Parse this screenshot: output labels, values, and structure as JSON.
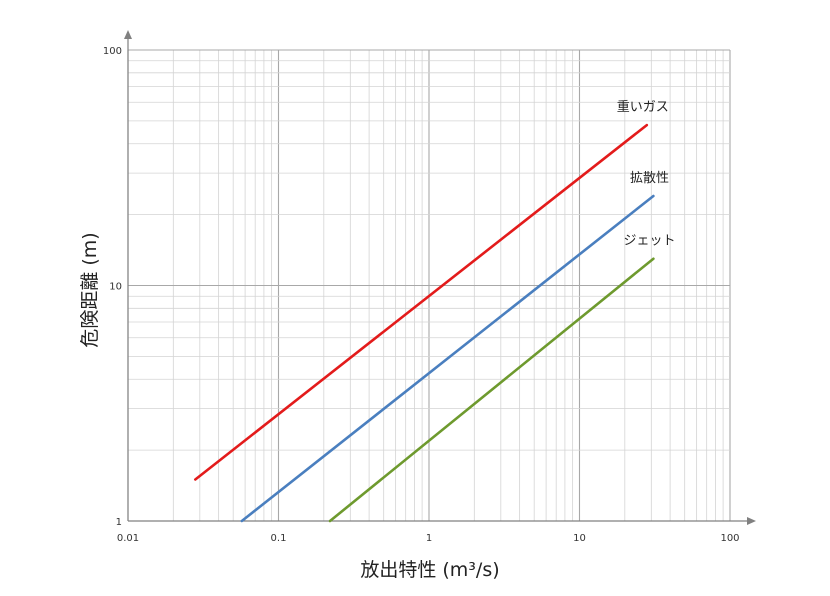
{
  "chart_data": {
    "type": "line",
    "xlabel": "放出特性 (m³/s)",
    "ylabel": "危険距離 (m)",
    "x_scale": "log",
    "y_scale": "log",
    "xlim": [
      0.01,
      100
    ],
    "ylim": [
      1,
      100
    ],
    "x_ticks": [
      "0.01",
      "0.1",
      "1",
      "10",
      "100"
    ],
    "y_ticks": [
      "1",
      "10",
      "100"
    ],
    "grid": true,
    "series": [
      {
        "name": "重いガス",
        "color": "#e31b1b",
        "x": [
          0.028,
          28
        ],
        "y": [
          1.5,
          48
        ]
      },
      {
        "name": "拡散性",
        "color": "#4a7fbf",
        "x": [
          0.057,
          31
        ],
        "y": [
          1.0,
          24
        ]
      },
      {
        "name": "ジェット",
        "color": "#6e9a2e",
        "x": [
          0.22,
          31
        ],
        "y": [
          1.0,
          13
        ]
      }
    ]
  }
}
